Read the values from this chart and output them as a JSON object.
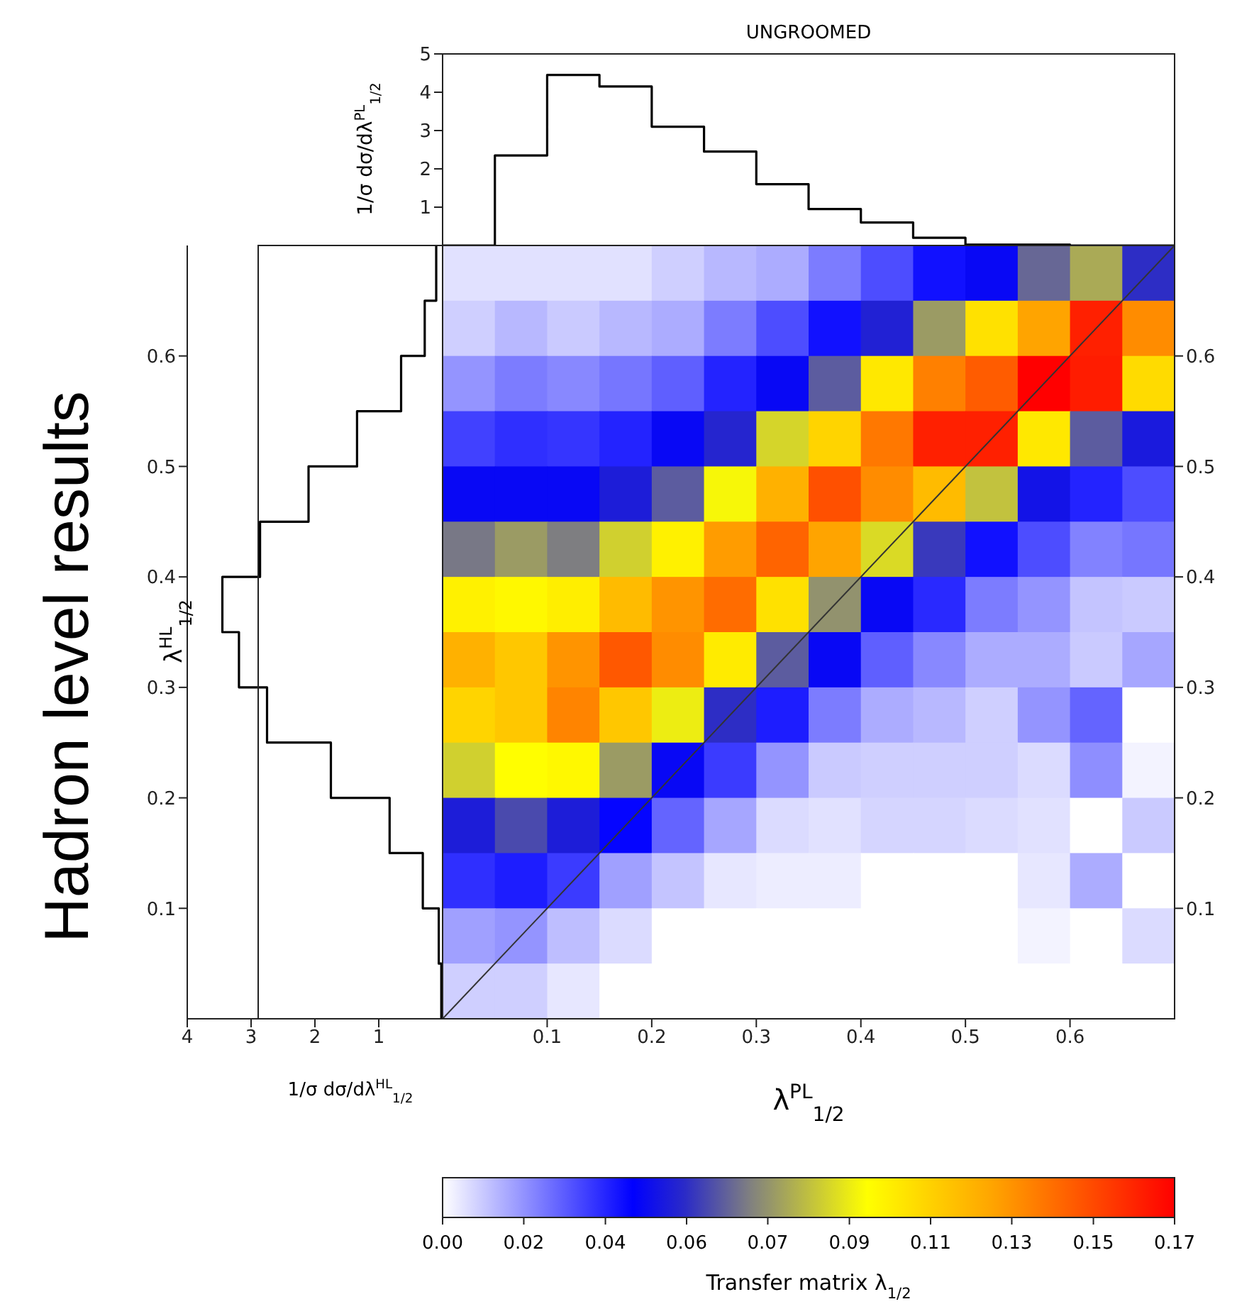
{
  "chart_data": [
    {
      "type": "histogram",
      "title": "UNGROOMED",
      "ylabel": "1/σ dσ/dλ$^{PL}$$_{1/2}$",
      "bins": [
        0,
        0.05,
        0.1,
        0.15,
        0.2,
        0.25,
        0.3,
        0.35,
        0.4,
        0.45,
        0.5,
        0.55,
        0.6,
        0.65,
        0.7
      ],
      "values": [
        0,
        2.35,
        4.45,
        4.15,
        3.1,
        2.45,
        1.6,
        0.95,
        0.6,
        0.2,
        0.02,
        0.02,
        0,
        0
      ],
      "color": "#000000",
      "xlim": [
        0,
        0.7
      ],
      "ylim": [
        0,
        5
      ],
      "yticks": [
        1,
        2,
        3,
        4,
        5
      ],
      "tick_labels": "y"
    },
    {
      "type": "histogram",
      "orientation": "horizontal",
      "xlabel": "1/σ dσ/dλ$^{HL}$$_{1/2}$",
      "ylabel": "λ$^{HL}$$_{1/2}$",
      "annotations": [
        "Hadron level results"
      ],
      "bins": [
        0,
        0.05,
        0.1,
        0.15,
        0.2,
        0.25,
        0.3,
        0.35,
        0.4,
        0.45,
        0.5,
        0.55,
        0.6,
        0.65,
        0.7
      ],
      "values": [
        0.02,
        0.06,
        0.31,
        0.83,
        1.75,
        2.75,
        3.19,
        3.45,
        2.86,
        2.1,
        1.34,
        0.65,
        0.28,
        0.1
      ],
      "color": "#000000",
      "xlim": [
        4,
        0
      ],
      "xticks": [
        4,
        3,
        2,
        1
      ],
      "ylim": [
        0,
        0.7
      ],
      "yticks": [
        0.1,
        0.2,
        0.3,
        0.4,
        0.5,
        0.6
      ]
    },
    {
      "type": "heatmap",
      "xlabel": "λ$^{PL}$$_{1/2}$",
      "clabel": "Transfer matrix λ$_{1/2}$",
      "x": [
        0.025,
        0.075,
        0.125,
        0.175,
        0.225,
        0.275,
        0.325,
        0.375,
        0.425,
        0.475,
        0.525,
        0.575,
        0.625,
        0.675
      ],
      "cells": [
        [
          0.005,
          0.005,
          0.005,
          0.005,
          0.008,
          0.012,
          0.014,
          0.022,
          0.03,
          0.04,
          0.045,
          0.065,
          0.078,
          0.055
        ],
        [
          0.008,
          0.012,
          0.009,
          0.012,
          0.014,
          0.022,
          0.03,
          0.04,
          0.052,
          0.075,
          0.105,
          0.124,
          0.157,
          0.13
        ],
        [
          0.018,
          0.022,
          0.02,
          0.023,
          0.027,
          0.037,
          0.045,
          0.063,
          0.103,
          0.133,
          0.142,
          0.165,
          0.158,
          0.107
        ],
        [
          0.032,
          0.035,
          0.034,
          0.037,
          0.045,
          0.053,
          0.087,
          0.109,
          0.135,
          0.157,
          0.157,
          0.103,
          0.063,
          0.05
        ],
        [
          0.045,
          0.045,
          0.045,
          0.051,
          0.063,
          0.094,
          0.12,
          0.145,
          0.13,
          0.117,
          0.083,
          0.048,
          0.037,
          0.03
        ],
        [
          0.068,
          0.075,
          0.069,
          0.086,
          0.1,
          0.126,
          0.14,
          0.124,
          0.088,
          0.057,
          0.04,
          0.03,
          0.021,
          0.023
        ],
        [
          0.1,
          0.098,
          0.101,
          0.117,
          0.128,
          0.138,
          0.105,
          0.073,
          0.045,
          0.036,
          0.022,
          0.018,
          0.01,
          0.009
        ],
        [
          0.12,
          0.113,
          0.128,
          0.143,
          0.13,
          0.102,
          0.063,
          0.045,
          0.027,
          0.02,
          0.014,
          0.014,
          0.009,
          0.015
        ],
        [
          0.109,
          0.113,
          0.132,
          0.113,
          0.092,
          0.055,
          0.038,
          0.022,
          0.014,
          0.012,
          0.008,
          0.018,
          0.026,
          0
        ],
        [
          0.086,
          0.096,
          0.098,
          0.075,
          0.045,
          0.033,
          0.018,
          0.009,
          0.008,
          0.008,
          0.008,
          0.006,
          0.019,
          0.002
        ],
        [
          0.051,
          0.06,
          0.051,
          0.042,
          0.026,
          0.015,
          0.006,
          0.005,
          0.007,
          0.007,
          0.006,
          0.005,
          0,
          0.009
        ],
        [
          0.035,
          0.038,
          0.033,
          0.016,
          0.01,
          0.004,
          0.003,
          0.003,
          0,
          0,
          0,
          0.004,
          0.014,
          0
        ],
        [
          0.016,
          0.018,
          0.011,
          0.006,
          0,
          0,
          0,
          0,
          0,
          0,
          0,
          0.002,
          0,
          0.006
        ],
        [
          0.008,
          0.008,
          0.004,
          0,
          0,
          0,
          0,
          0,
          0,
          0,
          0,
          0,
          0,
          0
        ]
      ],
      "series": [
        {
          "type": "line",
          "x": [
            0,
            0.7
          ],
          "values": [
            0,
            0.7
          ],
          "color": "#333333"
        }
      ],
      "xlim": [
        0,
        0.7
      ],
      "xticks": [
        0.1,
        0.2,
        0.3,
        0.4,
        0.5,
        0.6
      ],
      "ylim": [
        0,
        0.7
      ],
      "yticks": [
        0.1,
        0.2,
        0.3,
        0.4,
        0.5,
        0.6
      ],
      "clim": [
        0,
        0.165
      ],
      "cticks": [
        {
          "value": 0,
          "label": "0.00"
        },
        {
          "value": 0.0183,
          "label": "0.02"
        },
        {
          "value": 0.0367,
          "label": "0.04"
        },
        {
          "value": 0.055,
          "label": "0.06"
        },
        {
          "value": 0.0733,
          "label": "0.07"
        },
        {
          "value": 0.0917,
          "label": "0.09"
        },
        {
          "value": 0.11,
          "label": "0.11"
        },
        {
          "value": 0.1283,
          "label": "0.13"
        },
        {
          "value": 0.1467,
          "label": "0.15"
        },
        {
          "value": 0.165,
          "label": "0.17"
        }
      ]
    }
  ]
}
